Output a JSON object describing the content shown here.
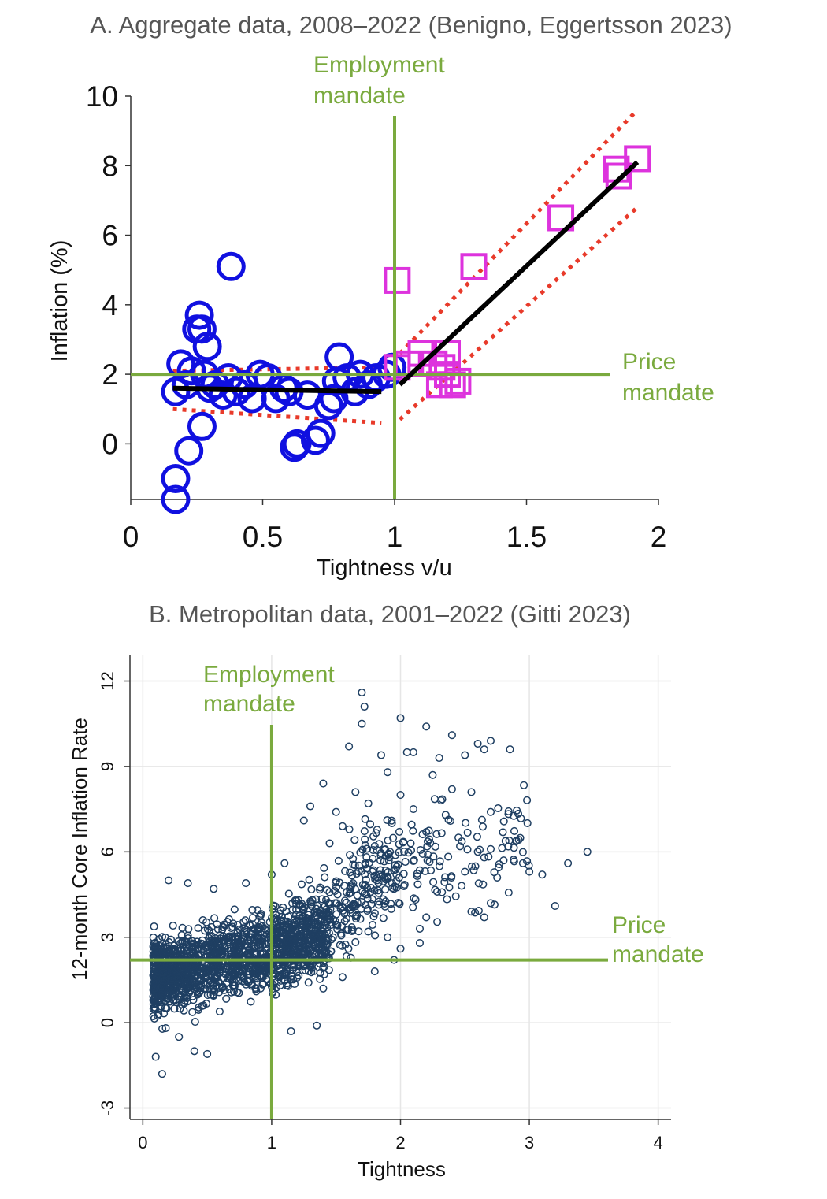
{
  "colors": {
    "mandate": "#7aaa3e",
    "circles": "#1010e0",
    "squares": "#dd33dd",
    "fit": "#000000",
    "ci": "#e83a2a",
    "metro": "#1f3f62"
  },
  "chart_data": [
    {
      "type": "scatter",
      "title": "A. Aggregate data, 2008–2022 (Benigno, Eggertsson 2023)",
      "xlabel": "Tightness v/u",
      "ylabel": "Inflation (%)",
      "xlim": [
        0,
        2
      ],
      "ylim": [
        -1.6,
        10
      ],
      "xticks": [
        "0",
        "0.5",
        "1",
        "1.5",
        "2"
      ],
      "xtick_values": [
        0,
        0.5,
        1,
        1.5,
        2
      ],
      "yticks": [
        "0",
        "2",
        "4",
        "6",
        "8",
        "10"
      ],
      "ytick_values": [
        0,
        2,
        4,
        6,
        8,
        10
      ],
      "grid": false,
      "annotations": {
        "employment_line1": "Employment",
        "employment_line2": "mandate",
        "price_line1": "Price",
        "price_line2": "mandate"
      },
      "reference_lines": {
        "employment_x": 1.0,
        "price_y": 2.0
      },
      "series": [
        {
          "marker": "circle",
          "points": [
            [
              0.17,
              -1.6
            ],
            [
              0.17,
              -1.0
            ],
            [
              0.22,
              -0.2
            ],
            [
              0.27,
              0.5
            ],
            [
              0.17,
              1.5
            ],
            [
              0.19,
              2.3
            ],
            [
              0.21,
              1.7
            ],
            [
              0.23,
              2.1
            ],
            [
              0.25,
              3.3
            ],
            [
              0.26,
              3.7
            ],
            [
              0.27,
              3.3
            ],
            [
              0.29,
              2.8
            ],
            [
              0.28,
              2.0
            ],
            [
              0.3,
              1.6
            ],
            [
              0.32,
              1.7
            ],
            [
              0.35,
              1.4
            ],
            [
              0.37,
              1.9
            ],
            [
              0.38,
              5.1
            ],
            [
              0.4,
              1.5
            ],
            [
              0.43,
              1.7
            ],
            [
              0.46,
              1.3
            ],
            [
              0.49,
              2.0
            ],
            [
              0.52,
              1.9
            ],
            [
              0.55,
              1.3
            ],
            [
              0.58,
              1.6
            ],
            [
              0.6,
              1.5
            ],
            [
              0.62,
              -0.1
            ],
            [
              0.63,
              0.0
            ],
            [
              0.67,
              1.4
            ],
            [
              0.7,
              0.1
            ],
            [
              0.72,
              0.3
            ],
            [
              0.75,
              1.1
            ],
            [
              0.77,
              1.3
            ],
            [
              0.78,
              1.8
            ],
            [
              0.79,
              2.5
            ],
            [
              0.82,
              1.9
            ],
            [
              0.85,
              1.5
            ],
            [
              0.87,
              2.0
            ],
            [
              0.9,
              1.7
            ],
            [
              0.93,
              1.9
            ],
            [
              0.97,
              2.0
            ],
            [
              0.99,
              2.2
            ]
          ]
        },
        {
          "marker": "square",
          "points": [
            [
              1.01,
              4.7
            ],
            [
              1.01,
              2.2
            ],
            [
              1.05,
              2.3
            ],
            [
              1.1,
              2.6
            ],
            [
              1.15,
              2.3
            ],
            [
              1.17,
              1.7
            ],
            [
              1.18,
              2.2
            ],
            [
              1.2,
              2.0
            ],
            [
              1.2,
              2.6
            ],
            [
              1.22,
              1.7
            ],
            [
              1.24,
              1.8
            ],
            [
              1.3,
              5.1
            ],
            [
              1.63,
              6.5
            ],
            [
              1.84,
              7.9
            ],
            [
              1.85,
              7.7
            ],
            [
              1.92,
              8.2
            ]
          ]
        }
      ],
      "fit": [
        {
          "x": [
            0.16,
            0.95
          ],
          "y": [
            1.6,
            1.5
          ]
        },
        {
          "x": [
            1.02,
            1.92
          ],
          "y": [
            1.7,
            8.1
          ]
        }
      ],
      "ci": [
        {
          "x": [
            0.16,
            0.95
          ],
          "y": [
            2.1,
            2.2
          ]
        },
        {
          "x": [
            0.16,
            0.95
          ],
          "y": [
            1.0,
            0.6
          ]
        },
        {
          "x": [
            1.02,
            1.92
          ],
          "y": [
            2.6,
            9.6
          ]
        },
        {
          "x": [
            1.02,
            1.92
          ],
          "y": [
            0.7,
            6.8
          ]
        }
      ]
    },
    {
      "type": "scatter",
      "title": "B. Metropolitan data, 2001–2022 (Gitti 2023)",
      "xlabel": "Tightness",
      "ylabel": "12-month Core Inflation Rate",
      "xlim": [
        -0.1,
        4.1
      ],
      "ylim": [
        -3.4,
        12.9
      ],
      "xticks": [
        "0",
        "1",
        "2",
        "3",
        "4"
      ],
      "xtick_values": [
        0,
        1,
        2,
        3,
        4
      ],
      "yticks": [
        "-3",
        "0",
        "3",
        "6",
        "9",
        "12"
      ],
      "ytick_values": [
        -3,
        0,
        3,
        6,
        9,
        12
      ],
      "grid": true,
      "annotations": {
        "employment_line1": "Employment",
        "employment_line2": "mandate",
        "price_line1": "Price",
        "price_line2": "mandate"
      },
      "reference_lines": {
        "employment_x": 1.0,
        "price_y": 2.2
      },
      "points": [
        [
          1.7,
          11.6
        ],
        [
          1.72,
          11.1
        ],
        [
          1.7,
          10.5
        ],
        [
          2.0,
          10.7
        ],
        [
          2.2,
          10.4
        ],
        [
          2.4,
          10.1
        ],
        [
          2.6,
          9.8
        ],
        [
          2.7,
          9.9
        ],
        [
          2.85,
          9.6
        ],
        [
          2.1,
          9.5
        ],
        [
          2.05,
          9.5
        ],
        [
          1.85,
          9.4
        ],
        [
          1.6,
          9.7
        ],
        [
          2.3,
          9.3
        ],
        [
          2.5,
          9.4
        ],
        [
          2.65,
          9.6
        ],
        [
          1.4,
          8.4
        ],
        [
          1.9,
          8.8
        ],
        [
          2.25,
          8.7
        ],
        [
          1.65,
          8.1
        ],
        [
          2.0,
          8.0
        ],
        [
          2.4,
          8.2
        ],
        [
          2.55,
          8.1
        ],
        [
          1.3,
          7.6
        ],
        [
          1.5,
          7.4
        ],
        [
          1.75,
          7.7
        ],
        [
          2.1,
          7.5
        ],
        [
          2.35,
          7.3
        ],
        [
          2.7,
          7.4
        ],
        [
          1.25,
          7.1
        ],
        [
          1.55,
          6.9
        ],
        [
          2.2,
          6.7
        ],
        [
          2.45,
          6.5
        ],
        [
          2.9,
          6.4
        ],
        [
          1.45,
          6.3
        ],
        [
          1.8,
          6.2
        ],
        [
          2.6,
          6.0
        ],
        [
          3.45,
          6.0
        ],
        [
          3.3,
          5.6
        ],
        [
          2.8,
          5.7
        ],
        [
          3.0,
          5.3
        ],
        [
          3.1,
          5.2
        ],
        [
          2.95,
          5.6
        ],
        [
          2.75,
          5.1
        ],
        [
          2.5,
          5.3
        ],
        [
          3.2,
          4.1
        ],
        [
          2.7,
          4.2
        ],
        [
          2.55,
          3.9
        ],
        [
          2.2,
          3.7
        ],
        [
          2.65,
          3.7
        ],
        [
          2.15,
          3.3
        ],
        [
          1.9,
          3.0
        ],
        [
          1.75,
          3.2
        ],
        [
          2.0,
          2.6
        ],
        [
          2.15,
          2.8
        ],
        [
          1.95,
          2.2
        ],
        [
          1.8,
          1.8
        ],
        [
          1.55,
          1.6
        ],
        [
          1.4,
          1.2
        ],
        [
          1.35,
          -0.1
        ],
        [
          1.15,
          -0.3
        ],
        [
          0.15,
          -1.8
        ],
        [
          0.1,
          -1.2
        ],
        [
          0.28,
          -0.5
        ],
        [
          0.4,
          -1.0
        ],
        [
          0.5,
          -1.1
        ],
        [
          0.2,
          5.0
        ],
        [
          0.35,
          4.9
        ],
        [
          0.55,
          4.7
        ],
        [
          0.8,
          4.9
        ],
        [
          1.0,
          5.2
        ],
        [
          1.1,
          5.6
        ]
      ],
      "cloud": [
        {
          "x_range": [
            0.08,
            1.45
          ],
          "y_center_at_x0": 1.5,
          "y_slope": 1.0,
          "y_spread": 2.3,
          "count": 1500
        },
        {
          "x_range": [
            1.0,
            2.0
          ],
          "y_center_at_x0": -0.5,
          "y_slope": 3.0,
          "y_spread": 2.8,
          "count": 280
        },
        {
          "x_range": [
            1.6,
            3.0
          ],
          "y_center_at_x0": 2.5,
          "y_slope": 1.4,
          "y_spread": 3.4,
          "count": 180
        }
      ]
    }
  ]
}
